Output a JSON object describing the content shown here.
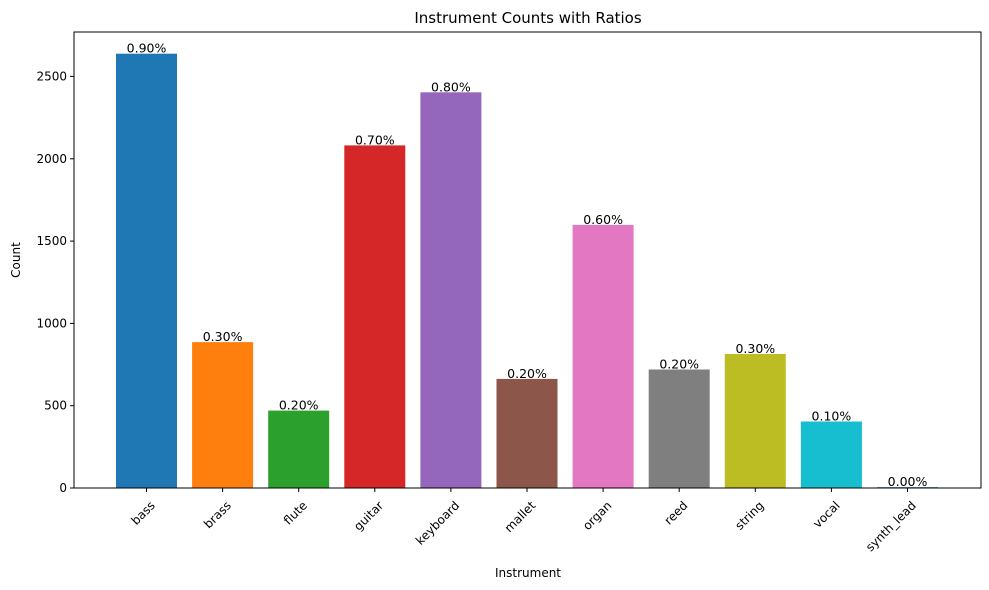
{
  "chart_data": {
    "type": "bar",
    "title": "Instrument Counts with Ratios",
    "xlabel": "Instrument",
    "ylabel": "Count",
    "categories": [
      "bass",
      "brass",
      "flute",
      "guitar",
      "keyboard",
      "mallet",
      "organ",
      "reed",
      "string",
      "vocal",
      "synth_lead"
    ],
    "values": [
      2638,
      886,
      470,
      2081,
      2404,
      663,
      1598,
      720,
      814,
      404,
      5
    ],
    "bar_labels": [
      "0.90%",
      "0.30%",
      "0.20%",
      "0.70%",
      "0.80%",
      "0.20%",
      "0.60%",
      "0.20%",
      "0.30%",
      "0.10%",
      "0.00%"
    ],
    "colors": [
      "#1f77b4",
      "#ff7f0e",
      "#2ca02c",
      "#d62728",
      "#9467bd",
      "#8c564b",
      "#e377c2",
      "#7f7f7f",
      "#bcbd22",
      "#17becf",
      "#1f77b4"
    ],
    "yticks": [
      0,
      500,
      1000,
      1500,
      2000,
      2500
    ],
    "ylim": [
      0,
      2770
    ],
    "grid": false,
    "x_tick_rotation_deg": 45
  }
}
